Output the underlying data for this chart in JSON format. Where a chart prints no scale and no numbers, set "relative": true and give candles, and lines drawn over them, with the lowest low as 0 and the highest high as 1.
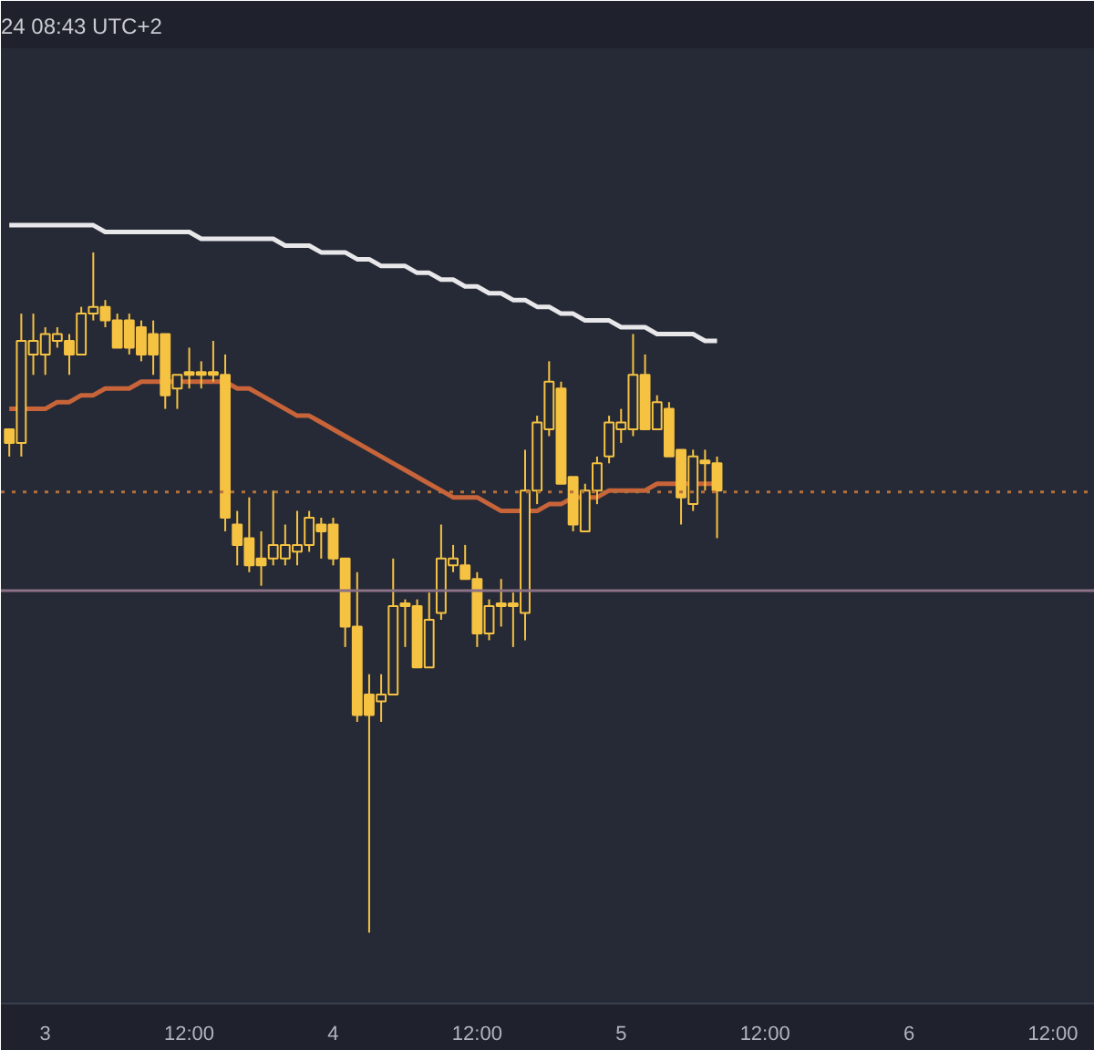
{
  "chart_data": {
    "type": "candlestick",
    "relative": true,
    "annotations": [
      "24 08:43 UTC+2"
    ],
    "categories": [
      null,
      null,
      null,
      "3",
      null,
      null,
      null,
      null,
      null,
      null,
      null,
      null,
      null,
      null,
      null,
      "12:00",
      null,
      null,
      null,
      null,
      null,
      null,
      null,
      null,
      null,
      null,
      null,
      "4",
      null,
      null,
      null,
      null,
      null,
      null,
      null,
      null,
      null,
      null,
      null,
      "12:00",
      null,
      null,
      null,
      null,
      null,
      null,
      null,
      null,
      null,
      null,
      null,
      "5",
      null,
      null,
      null,
      null,
      null,
      null,
      null,
      null,
      null,
      null,
      null,
      "12:00",
      null,
      null,
      null,
      null,
      null,
      null,
      null,
      null,
      null,
      null,
      null,
      "6",
      null,
      null,
      null,
      null,
      null,
      null,
      null,
      null,
      null,
      null,
      null,
      "12:00"
    ],
    "ohlc": [
      [
        0.74,
        0.74,
        0.7,
        0.72
      ],
      [
        0.72,
        0.91,
        0.7,
        0.87
      ],
      [
        0.85,
        0.91,
        0.82,
        0.87
      ],
      [
        0.85,
        0.89,
        0.82,
        0.88
      ],
      [
        0.87,
        0.89,
        0.86,
        0.88
      ],
      [
        0.87,
        0.88,
        0.82,
        0.85
      ],
      [
        0.85,
        0.92,
        0.85,
        0.91
      ],
      [
        0.91,
        1.0,
        0.9,
        0.92
      ],
      [
        0.92,
        0.93,
        0.89,
        0.9
      ],
      [
        0.9,
        0.91,
        0.86,
        0.86
      ],
      [
        0.9,
        0.91,
        0.85,
        0.86
      ],
      [
        0.89,
        0.9,
        0.84,
        0.85
      ],
      [
        0.88,
        0.9,
        0.82,
        0.85
      ],
      [
        0.88,
        0.88,
        0.77,
        0.79
      ],
      [
        0.8,
        0.82,
        0.77,
        0.82
      ],
      [
        0.82,
        0.86,
        0.8,
        0.82
      ],
      [
        0.82,
        0.84,
        0.8,
        0.82
      ],
      [
        0.82,
        0.87,
        0.81,
        0.82
      ],
      [
        0.82,
        0.85,
        0.59,
        0.61
      ],
      [
        0.6,
        0.62,
        0.54,
        0.57
      ],
      [
        0.58,
        0.64,
        0.53,
        0.54
      ],
      [
        0.55,
        0.59,
        0.51,
        0.54
      ],
      [
        0.55,
        0.65,
        0.54,
        0.57
      ],
      [
        0.55,
        0.6,
        0.54,
        0.57
      ],
      [
        0.56,
        0.62,
        0.54,
        0.57
      ],
      [
        0.57,
        0.62,
        0.56,
        0.61
      ],
      [
        0.6,
        0.61,
        0.55,
        0.59
      ],
      [
        0.6,
        0.61,
        0.54,
        0.55
      ],
      [
        0.55,
        0.55,
        0.42,
        0.45
      ],
      [
        0.45,
        0.53,
        0.31,
        0.32
      ],
      [
        0.35,
        0.38,
        0.0,
        0.32
      ],
      [
        0.34,
        0.38,
        0.31,
        0.35
      ],
      [
        0.35,
        0.55,
        0.35,
        0.48
      ],
      [
        0.48,
        0.49,
        0.42,
        0.48
      ],
      [
        0.48,
        0.49,
        0.39,
        0.39
      ],
      [
        0.39,
        0.5,
        0.39,
        0.46
      ],
      [
        0.47,
        0.6,
        0.46,
        0.55
      ],
      [
        0.54,
        0.57,
        0.53,
        0.55
      ],
      [
        0.54,
        0.57,
        0.52,
        0.52
      ],
      [
        0.52,
        0.53,
        0.42,
        0.44
      ],
      [
        0.44,
        0.49,
        0.43,
        0.48
      ],
      [
        0.48,
        0.52,
        0.45,
        0.48
      ],
      [
        0.48,
        0.5,
        0.42,
        0.48
      ],
      [
        0.47,
        0.71,
        0.43,
        0.65
      ],
      [
        0.65,
        0.76,
        0.63,
        0.75
      ],
      [
        0.74,
        0.84,
        0.73,
        0.81
      ],
      [
        0.8,
        0.81,
        0.66,
        0.66
      ],
      [
        0.67,
        0.67,
        0.59,
        0.6
      ],
      [
        0.59,
        0.66,
        0.59,
        0.65
      ],
      [
        0.65,
        0.7,
        0.63,
        0.69
      ],
      [
        0.7,
        0.76,
        0.69,
        0.75
      ],
      [
        0.74,
        0.77,
        0.72,
        0.75
      ],
      [
        0.74,
        0.88,
        0.73,
        0.82
      ],
      [
        0.82,
        0.85,
        0.74,
        0.74
      ],
      [
        0.74,
        0.79,
        0.74,
        0.78
      ],
      [
        0.77,
        0.78,
        0.7,
        0.7
      ],
      [
        0.71,
        0.71,
        0.6,
        0.64
      ],
      [
        0.63,
        0.71,
        0.62,
        0.7
      ],
      [
        0.69,
        0.71,
        0.65,
        0.69
      ],
      [
        0.69,
        0.7,
        0.58,
        0.65
      ],
      null,
      null,
      null,
      null,
      null,
      null,
      null,
      null,
      null,
      null,
      null,
      null,
      null,
      null,
      null,
      null,
      null,
      null,
      null,
      null,
      null,
      null,
      null,
      null,
      null,
      null,
      null,
      null
    ],
    "color": "#f5c242",
    "series": [
      {
        "type": "line",
        "color": "#e8e8ea",
        "values": [
          1.04,
          1.04,
          1.04,
          1.04,
          1.04,
          1.04,
          1.04,
          1.04,
          1.03,
          1.03,
          1.03,
          1.03,
          1.03,
          1.03,
          1.03,
          1.03,
          1.02,
          1.02,
          1.02,
          1.02,
          1.02,
          1.02,
          1.02,
          1.01,
          1.01,
          1.01,
          1.0,
          1.0,
          1.0,
          0.99,
          0.99,
          0.98,
          0.98,
          0.98,
          0.97,
          0.97,
          0.96,
          0.96,
          0.95,
          0.95,
          0.94,
          0.94,
          0.93,
          0.93,
          0.92,
          0.92,
          0.91,
          0.91,
          0.9,
          0.9,
          0.9,
          0.89,
          0.89,
          0.89,
          0.88,
          0.88,
          0.88,
          0.88,
          0.87,
          0.87,
          null,
          null,
          null,
          null,
          null,
          null,
          null,
          null,
          null,
          null,
          null,
          null,
          null,
          null,
          null,
          null,
          null,
          null,
          null,
          null,
          null,
          null,
          null,
          null,
          null,
          null,
          null,
          null
        ]
      },
      {
        "type": "line",
        "color": "#c8643a",
        "values": [
          0.77,
          0.77,
          0.77,
          0.77,
          0.78,
          0.78,
          0.79,
          0.79,
          0.8,
          0.8,
          0.8,
          0.81,
          0.81,
          0.81,
          0.81,
          0.81,
          0.81,
          0.81,
          0.81,
          0.8,
          0.8,
          0.79,
          0.78,
          0.77,
          0.76,
          0.76,
          0.75,
          0.74,
          0.73,
          0.72,
          0.71,
          0.7,
          0.69,
          0.68,
          0.67,
          0.66,
          0.65,
          0.64,
          0.64,
          0.64,
          0.63,
          0.62,
          0.62,
          0.62,
          0.62,
          0.63,
          0.63,
          0.64,
          0.64,
          0.64,
          0.65,
          0.65,
          0.65,
          0.65,
          0.66,
          0.66,
          0.66,
          0.66,
          0.66,
          0.66,
          null,
          null,
          null,
          null,
          null,
          null,
          null,
          null,
          null,
          null,
          null,
          null,
          null,
          null,
          null,
          null,
          null,
          null,
          null,
          null,
          null,
          null,
          null,
          null,
          null,
          null,
          null,
          null
        ]
      }
    ],
    "ref_lines": [
      {
        "axis": "y",
        "value": 0.648,
        "color": "#b5703a",
        "line_style": "dotted"
      },
      {
        "axis": "y",
        "value": 0.503,
        "color": "#8a7185"
      }
    ],
    "grid": false
  }
}
